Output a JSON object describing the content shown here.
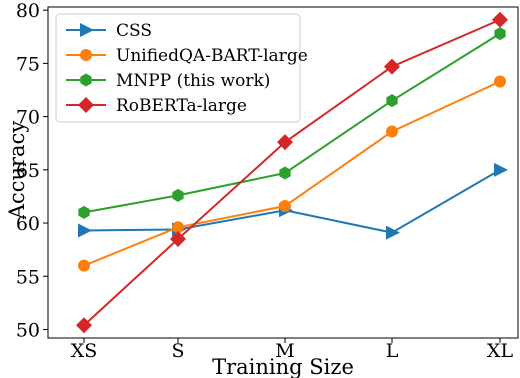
{
  "chart_data": {
    "type": "line",
    "title": "",
    "xlabel": "Training Size",
    "ylabel": "Accuracy",
    "categories": [
      "XS",
      "S",
      "M",
      "L",
      "XL"
    ],
    "ylim": [
      49.2,
      80.3
    ],
    "yticks": [
      50,
      55,
      60,
      65,
      70,
      75,
      80
    ],
    "grid": false,
    "legend_position": "top-left",
    "series": [
      {
        "name": "CSS",
        "color": "#1f77b4",
        "marker": "triangle-right",
        "values": [
          59.3,
          59.4,
          61.2,
          59.1,
          65.0
        ]
      },
      {
        "name": "UnifiedQA-BART-large",
        "color": "#ff7f0e",
        "marker": "circle",
        "values": [
          56.0,
          59.6,
          61.6,
          68.6,
          73.3
        ]
      },
      {
        "name": "MNPP (this work)",
        "color": "#2ca02c",
        "marker": "hexagon",
        "values": [
          61.0,
          62.6,
          64.7,
          71.5,
          77.8
        ]
      },
      {
        "name": "RoBERTa-large",
        "color": "#d62728",
        "marker": "diamond",
        "values": [
          50.4,
          58.5,
          67.6,
          74.7,
          79.1
        ]
      }
    ]
  }
}
